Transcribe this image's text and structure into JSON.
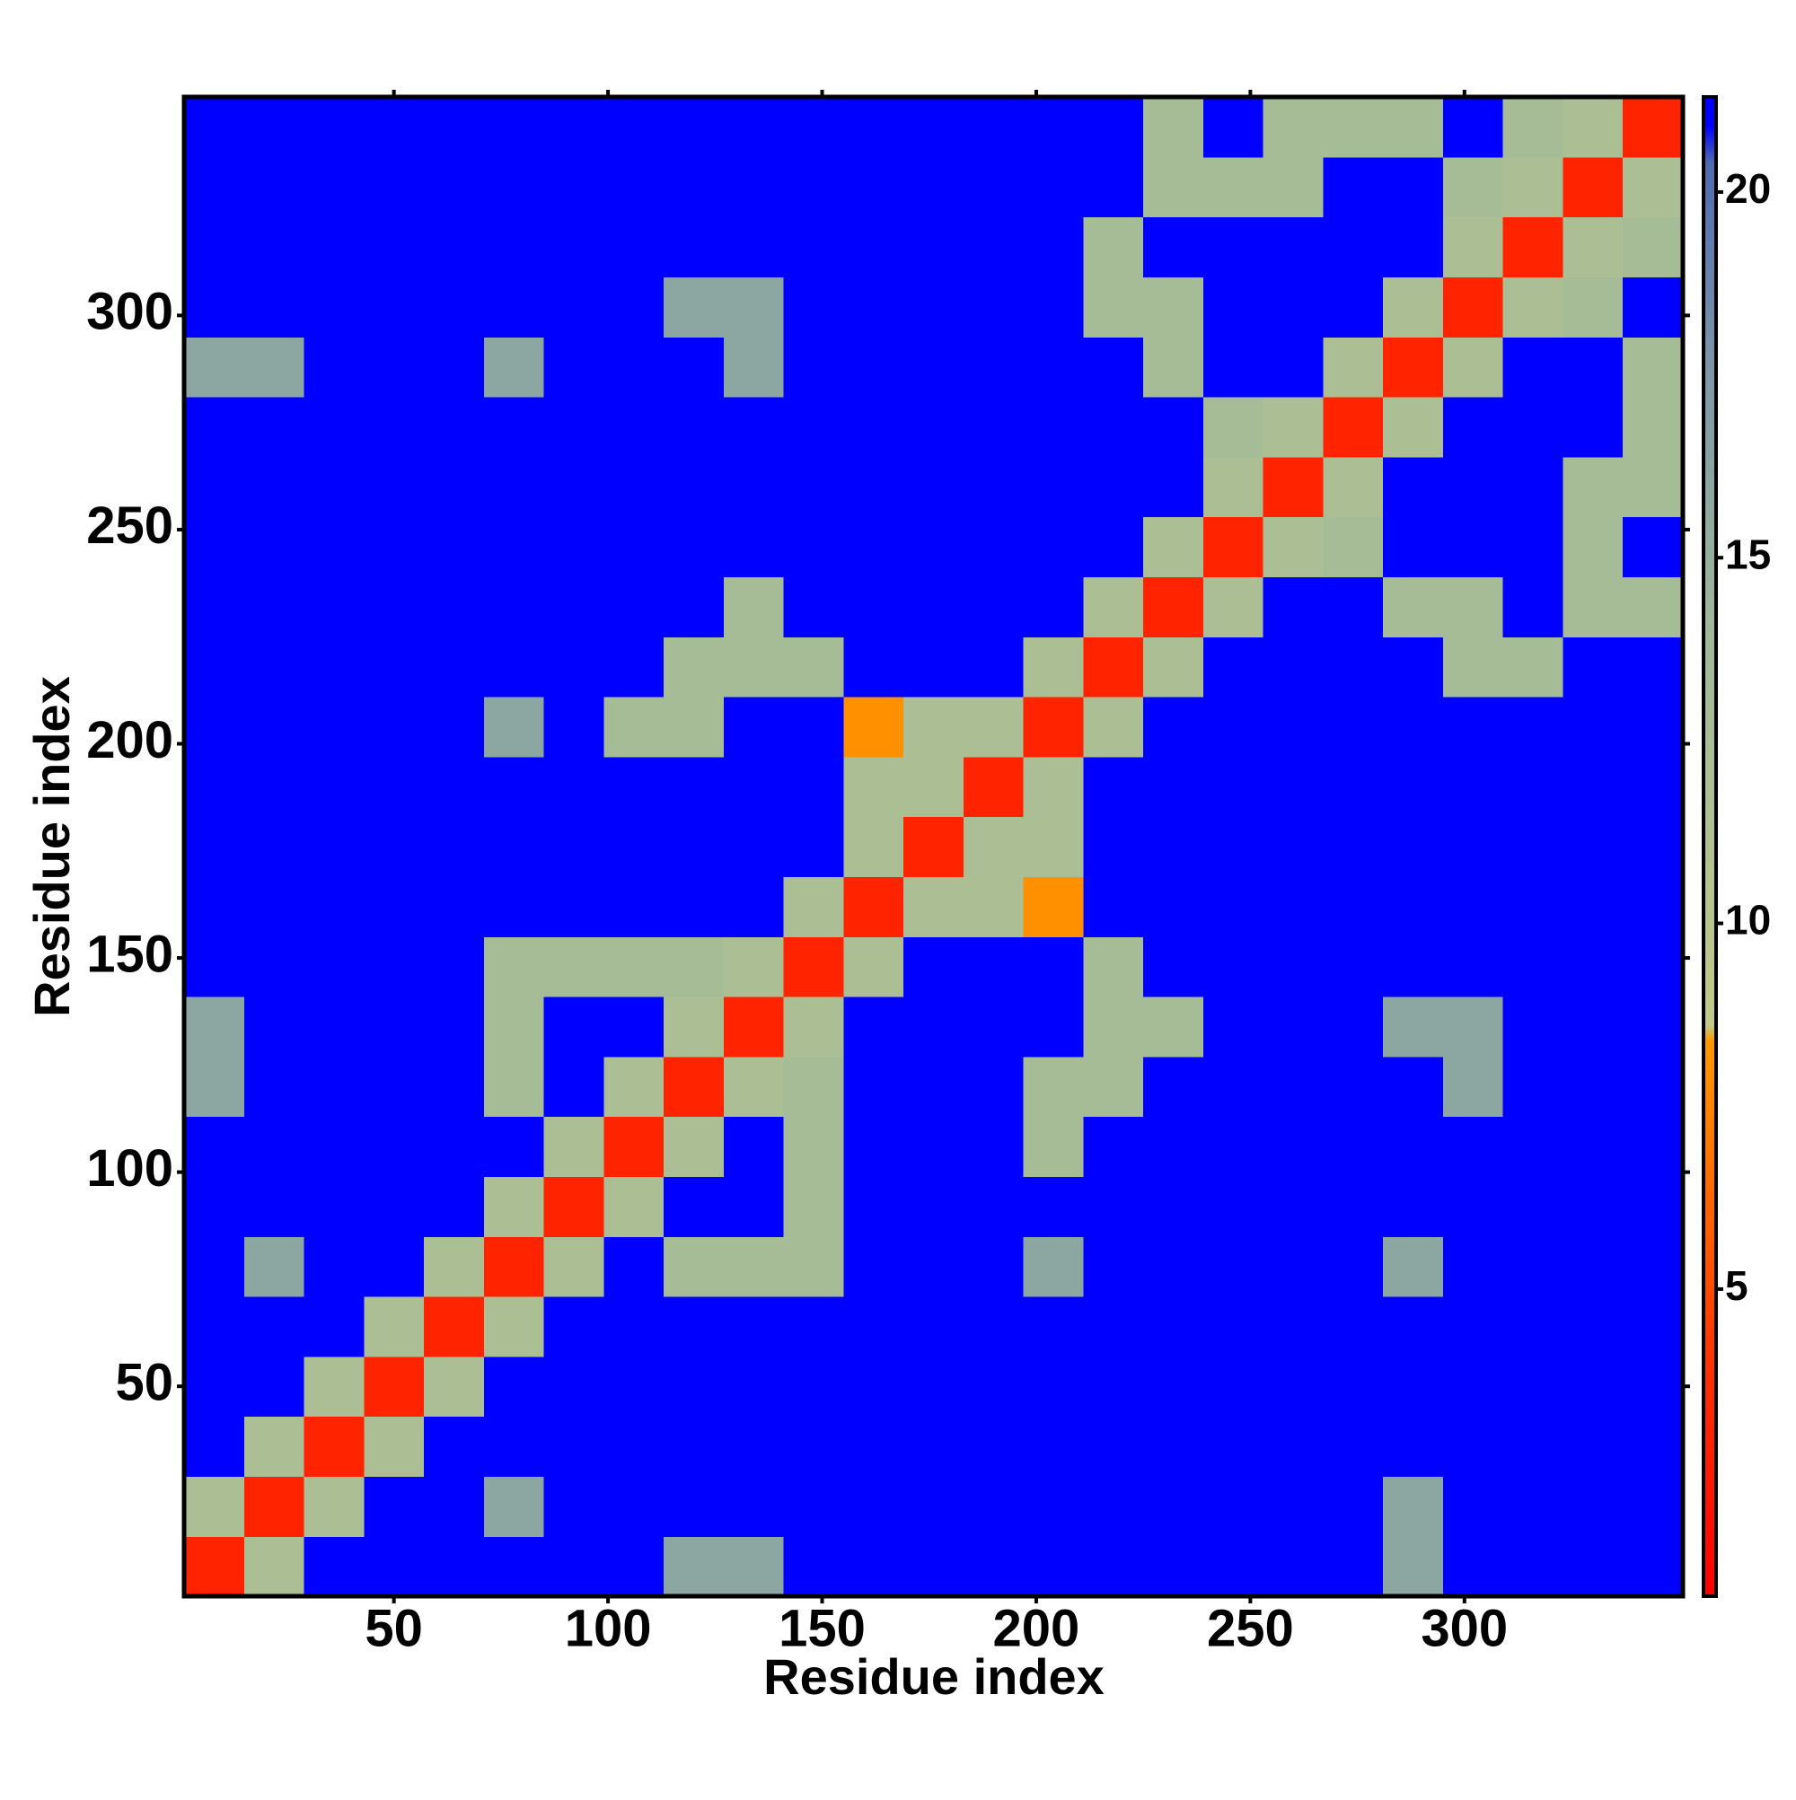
{
  "chart_data": {
    "type": "heatmap",
    "xlabel": "Residue index",
    "ylabel": "Residue index",
    "x": [
      8,
      22,
      36,
      50,
      64,
      78,
      92,
      106,
      120,
      134,
      148,
      162,
      176,
      190,
      204,
      218,
      232,
      246,
      260,
      274,
      288,
      302,
      316,
      330,
      344
    ],
    "y": [
      8,
      22,
      36,
      50,
      64,
      78,
      92,
      106,
      120,
      134,
      148,
      162,
      176,
      190,
      204,
      218,
      232,
      246,
      260,
      274,
      288,
      302,
      316,
      330,
      344
    ],
    "z": [
      [
        3,
        12,
        21,
        21,
        21,
        21,
        21,
        21,
        16,
        16,
        21,
        21,
        21,
        21,
        21,
        21,
        21,
        21,
        21,
        21,
        16,
        21,
        21,
        21,
        21
      ],
      [
        12,
        3,
        12,
        21,
        21,
        16,
        21,
        21,
        21,
        21,
        21,
        21,
        21,
        21,
        21,
        21,
        21,
        21,
        21,
        21,
        16,
        21,
        21,
        21,
        21
      ],
      [
        21,
        12,
        3,
        12,
        21,
        21,
        21,
        21,
        21,
        21,
        21,
        21,
        21,
        21,
        21,
        21,
        21,
        21,
        21,
        21,
        21,
        21,
        21,
        21,
        21
      ],
      [
        21,
        21,
        12,
        3,
        12,
        21,
        21,
        21,
        21,
        21,
        21,
        21,
        21,
        21,
        21,
        21,
        21,
        21,
        21,
        21,
        21,
        21,
        21,
        21,
        21
      ],
      [
        21,
        21,
        21,
        12,
        3,
        12,
        21,
        21,
        21,
        21,
        21,
        21,
        21,
        21,
        21,
        21,
        21,
        21,
        21,
        21,
        21,
        21,
        21,
        21,
        21
      ],
      [
        21,
        16,
        21,
        21,
        12,
        3,
        12,
        21,
        13,
        13,
        13,
        21,
        21,
        21,
        16,
        21,
        21,
        21,
        21,
        21,
        16,
        21,
        21,
        21,
        21
      ],
      [
        21,
        21,
        21,
        21,
        21,
        12,
        3,
        12,
        21,
        21,
        13,
        21,
        21,
        21,
        21,
        21,
        21,
        21,
        21,
        21,
        21,
        21,
        21,
        21,
        21
      ],
      [
        21,
        21,
        21,
        21,
        21,
        21,
        12,
        3,
        12,
        21,
        13,
        21,
        21,
        21,
        13,
        21,
        21,
        21,
        21,
        21,
        21,
        21,
        21,
        21,
        21
      ],
      [
        16,
        21,
        21,
        21,
        21,
        13,
        21,
        12,
        3,
        12,
        13,
        21,
        21,
        21,
        13,
        13,
        21,
        21,
        21,
        21,
        21,
        16,
        21,
        21,
        21
      ],
      [
        16,
        21,
        21,
        21,
        21,
        13,
        21,
        21,
        12,
        3,
        12,
        21,
        21,
        21,
        21,
        13,
        13,
        21,
        21,
        21,
        16,
        16,
        21,
        21,
        21
      ],
      [
        21,
        21,
        21,
        21,
        21,
        13,
        13,
        13,
        13,
        12,
        3,
        12,
        21,
        21,
        21,
        13,
        21,
        21,
        21,
        21,
        21,
        21,
        21,
        21,
        21
      ],
      [
        21,
        21,
        21,
        21,
        21,
        21,
        21,
        21,
        21,
        21,
        12,
        3,
        12,
        12,
        8,
        21,
        21,
        21,
        21,
        21,
        21,
        21,
        21,
        21,
        21
      ],
      [
        21,
        21,
        21,
        21,
        21,
        21,
        21,
        21,
        21,
        21,
        21,
        12,
        3,
        12,
        12,
        21,
        21,
        21,
        21,
        21,
        21,
        21,
        21,
        21,
        21
      ],
      [
        21,
        21,
        21,
        21,
        21,
        21,
        21,
        21,
        21,
        21,
        21,
        12,
        12,
        3,
        12,
        21,
        21,
        21,
        21,
        21,
        21,
        21,
        21,
        21,
        21
      ],
      [
        21,
        21,
        21,
        21,
        21,
        16,
        21,
        13,
        13,
        21,
        21,
        8,
        12,
        12,
        3,
        12,
        21,
        21,
        21,
        21,
        21,
        21,
        21,
        21,
        21
      ],
      [
        21,
        21,
        21,
        21,
        21,
        21,
        21,
        21,
        13,
        13,
        13,
        21,
        21,
        21,
        12,
        3,
        12,
        21,
        21,
        21,
        21,
        13,
        13,
        21,
        21
      ],
      [
        21,
        21,
        21,
        21,
        21,
        21,
        21,
        21,
        21,
        13,
        21,
        21,
        21,
        21,
        21,
        12,
        3,
        12,
        21,
        21,
        13,
        13,
        21,
        13,
        13
      ],
      [
        21,
        21,
        21,
        21,
        21,
        21,
        21,
        21,
        21,
        21,
        21,
        21,
        21,
        21,
        21,
        21,
        12,
        3,
        12,
        13,
        21,
        21,
        21,
        13,
        21
      ],
      [
        21,
        21,
        21,
        21,
        21,
        21,
        21,
        21,
        21,
        21,
        21,
        21,
        21,
        21,
        21,
        21,
        21,
        12,
        3,
        12,
        21,
        21,
        21,
        13,
        13
      ],
      [
        21,
        21,
        21,
        21,
        21,
        21,
        21,
        21,
        21,
        21,
        21,
        21,
        21,
        21,
        21,
        21,
        21,
        13,
        12,
        3,
        12,
        21,
        21,
        21,
        13
      ],
      [
        16,
        16,
        21,
        21,
        21,
        16,
        21,
        21,
        21,
        16,
        21,
        21,
        21,
        21,
        21,
        21,
        13,
        21,
        21,
        12,
        3,
        12,
        21,
        21,
        13
      ],
      [
        21,
        21,
        21,
        21,
        21,
        21,
        21,
        21,
        16,
        16,
        21,
        21,
        21,
        21,
        21,
        13,
        13,
        21,
        21,
        21,
        12,
        3,
        12,
        13,
        21
      ],
      [
        21,
        21,
        21,
        21,
        21,
        21,
        21,
        21,
        21,
        21,
        21,
        21,
        21,
        21,
        21,
        13,
        21,
        21,
        21,
        21,
        21,
        12,
        3,
        12,
        13
      ],
      [
        21,
        21,
        21,
        21,
        21,
        21,
        21,
        21,
        21,
        21,
        21,
        21,
        21,
        21,
        21,
        21,
        13,
        13,
        13,
        21,
        21,
        13,
        12,
        3,
        12
      ],
      [
        21,
        21,
        21,
        21,
        21,
        21,
        21,
        21,
        21,
        21,
        21,
        21,
        21,
        21,
        21,
        21,
        13,
        21,
        13,
        13,
        13,
        21,
        13,
        12,
        3
      ]
    ],
    "xlim": [
      1,
      351
    ],
    "ylim": [
      1,
      351
    ],
    "xticks": [
      50,
      100,
      150,
      200,
      250,
      300
    ],
    "yticks": [
      50,
      100,
      150,
      200,
      250,
      300
    ],
    "colorbar": {
      "lim": [
        0.8,
        21.3
      ],
      "ticks": [
        5,
        10,
        15,
        20
      ]
    },
    "colorscale": [
      [
        0.8,
        "#ff0000"
      ],
      [
        4,
        "#ff3300"
      ],
      [
        8.4,
        "#ff9900"
      ],
      [
        8.6,
        "#c2c98a"
      ],
      [
        14,
        "#9fb99a"
      ],
      [
        17.5,
        "#7e98a8"
      ],
      [
        20.4,
        "#4f6ab0"
      ],
      [
        20.9,
        "#0000ff"
      ],
      [
        21.3,
        "#0000ff"
      ]
    ]
  }
}
